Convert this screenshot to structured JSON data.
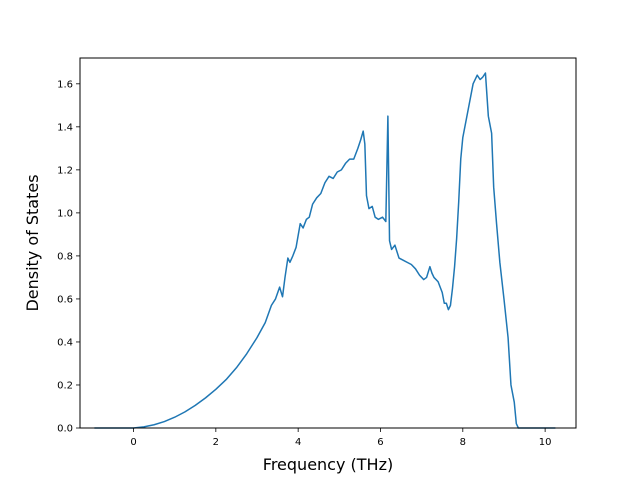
{
  "chart_data": {
    "type": "line",
    "title": "",
    "xlabel": "Frequency (THz)",
    "ylabel": "Density of States",
    "xlim": [
      -1.3,
      10.75
    ],
    "ylim": [
      0.0,
      1.72
    ],
    "grid": false,
    "legend": "none",
    "xticks": [
      "0",
      "2",
      "4",
      "6",
      "8",
      "10"
    ],
    "xtick_values": [
      0,
      2,
      4,
      6,
      8,
      10
    ],
    "yticks": [
      "0.0",
      "0.2",
      "0.4",
      "0.6",
      "0.8",
      "1.0",
      "1.2",
      "1.4",
      "1.6"
    ],
    "ytick_values": [
      0.0,
      0.2,
      0.4,
      0.6,
      0.8,
      1.0,
      1.2,
      1.4,
      1.6
    ],
    "colors": {
      "line": "#1f77b4"
    },
    "series": [
      {
        "x": [
          -0.95,
          0.0,
          0.25,
          0.5,
          0.75,
          1.0,
          1.25,
          1.5,
          1.75,
          2.0,
          2.25,
          2.5,
          2.75,
          3.0,
          3.2,
          3.35,
          3.45,
          3.55,
          3.62,
          3.68,
          3.75,
          3.8,
          3.87,
          3.95,
          4.05,
          4.12,
          4.2,
          4.27,
          4.35,
          4.45,
          4.55,
          4.65,
          4.75,
          4.85,
          4.95,
          5.05,
          5.15,
          5.25,
          5.35,
          5.45,
          5.52,
          5.58,
          5.62,
          5.66,
          5.72,
          5.8,
          5.87,
          5.95,
          6.05,
          6.13,
          6.18,
          6.22,
          6.27,
          6.35,
          6.45,
          6.55,
          6.65,
          6.75,
          6.85,
          6.95,
          7.05,
          7.12,
          7.2,
          7.25,
          7.3,
          7.4,
          7.5,
          7.55,
          7.6,
          7.65,
          7.7,
          7.75,
          7.8,
          7.85,
          7.9,
          7.95,
          8.0,
          8.05,
          8.15,
          8.25,
          8.35,
          8.42,
          8.48,
          8.55,
          8.62,
          8.7,
          8.75,
          8.82,
          8.9,
          9.0,
          9.1,
          9.17,
          9.25,
          9.3,
          9.35,
          9.6,
          10.25
        ],
        "values": [
          0.0,
          0.0,
          0.005,
          0.015,
          0.03,
          0.05,
          0.075,
          0.105,
          0.14,
          0.18,
          0.225,
          0.28,
          0.345,
          0.42,
          0.49,
          0.57,
          0.6,
          0.655,
          0.61,
          0.7,
          0.79,
          0.77,
          0.8,
          0.84,
          0.95,
          0.93,
          0.97,
          0.98,
          1.04,
          1.07,
          1.09,
          1.14,
          1.17,
          1.16,
          1.19,
          1.2,
          1.23,
          1.25,
          1.25,
          1.3,
          1.34,
          1.38,
          1.32,
          1.08,
          1.02,
          1.03,
          0.98,
          0.97,
          0.98,
          0.96,
          1.45,
          0.87,
          0.83,
          0.85,
          0.79,
          0.78,
          0.77,
          0.76,
          0.74,
          0.71,
          0.69,
          0.7,
          0.75,
          0.72,
          0.7,
          0.68,
          0.63,
          0.58,
          0.58,
          0.55,
          0.57,
          0.65,
          0.75,
          0.88,
          1.05,
          1.25,
          1.35,
          1.4,
          1.5,
          1.6,
          1.64,
          1.62,
          1.63,
          1.65,
          1.45,
          1.37,
          1.12,
          0.95,
          0.77,
          0.6,
          0.42,
          0.2,
          0.12,
          0.02,
          0.0,
          0.0,
          0.0
        ]
      }
    ]
  }
}
